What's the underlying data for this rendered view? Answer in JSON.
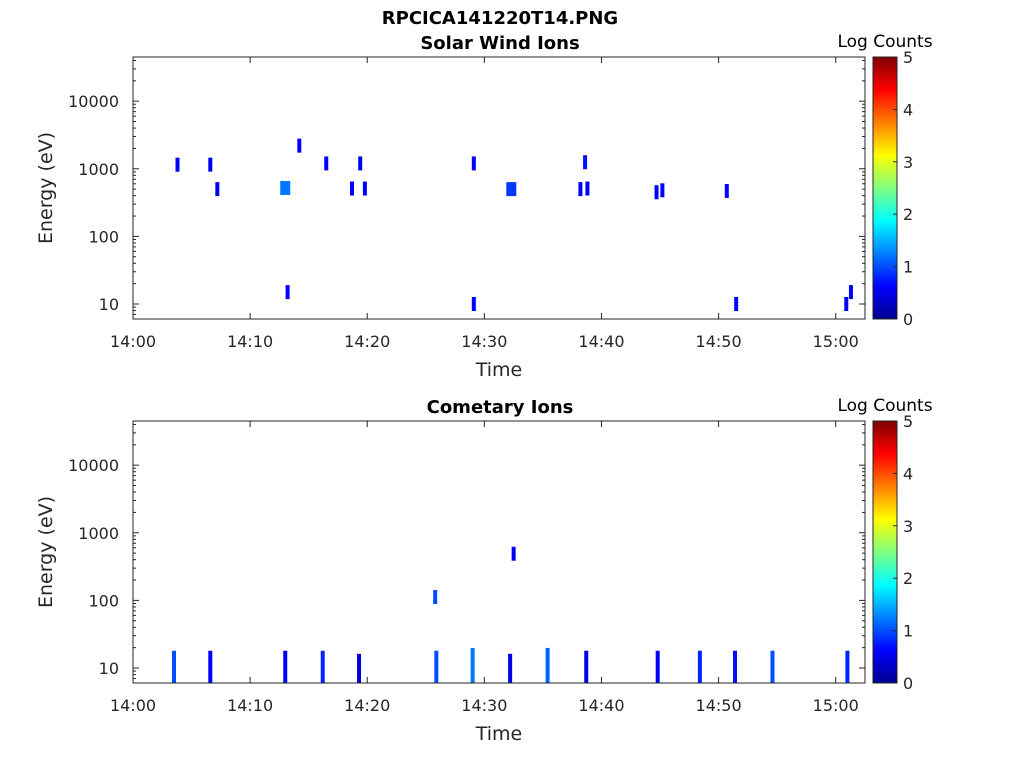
{
  "figure_title": "RPCICA141220T14.PNG",
  "colormap": [
    "#00008f",
    "#0000ff",
    "#00ffff",
    "#ffff00",
    "#ff0000",
    "#800000"
  ],
  "chart_data": [
    {
      "type": "heatmap",
      "title": "Solar Wind Ions",
      "xlabel": "Time",
      "ylabel": "Energy (eV)",
      "yscale": "log",
      "ylim": [
        6,
        45000
      ],
      "xlim_minutes": [
        0,
        62.5
      ],
      "xticks": [
        "14:00",
        "14:10",
        "14:20",
        "14:30",
        "14:40",
        "14:50",
        "15:00"
      ],
      "yticks": [
        "10",
        "100",
        "1000",
        "10000"
      ],
      "colorbar": {
        "label": "Log Counts",
        "range": [
          0,
          5
        ],
        "ticks": [
          "0",
          "1",
          "2",
          "3",
          "4",
          "5"
        ]
      },
      "events": [
        {
          "t": 3.8,
          "e": 1150,
          "level": 0.6
        },
        {
          "t": 6.6,
          "e": 1150,
          "level": 0.5
        },
        {
          "t": 7.2,
          "e": 500,
          "level": 0.5
        },
        {
          "t": 13.0,
          "e": 520,
          "level": 1.2
        },
        {
          "t": 13.2,
          "e": 15,
          "level": 0.6
        },
        {
          "t": 14.2,
          "e": 2200,
          "level": 0.6
        },
        {
          "t": 16.5,
          "e": 1200,
          "level": 0.6
        },
        {
          "t": 18.7,
          "e": 510,
          "level": 0.6
        },
        {
          "t": 19.4,
          "e": 1200,
          "level": 0.5
        },
        {
          "t": 19.8,
          "e": 510,
          "level": 0.6
        },
        {
          "t": 29.1,
          "e": 1200,
          "level": 0.6
        },
        {
          "t": 29.1,
          "e": 10,
          "level": 0.6
        },
        {
          "t": 32.3,
          "e": 500,
          "level": 0.9
        },
        {
          "t": 38.2,
          "e": 500,
          "level": 0.6
        },
        {
          "t": 38.6,
          "e": 1250,
          "level": 0.7
        },
        {
          "t": 38.8,
          "e": 510,
          "level": 0.6
        },
        {
          "t": 44.7,
          "e": 450,
          "level": 0.6
        },
        {
          "t": 45.2,
          "e": 480,
          "level": 0.6
        },
        {
          "t": 50.7,
          "e": 470,
          "level": 0.6
        },
        {
          "t": 51.5,
          "e": 10,
          "level": 0.6
        },
        {
          "t": 60.9,
          "e": 10,
          "level": 0.6
        },
        {
          "t": 61.3,
          "e": 15,
          "level": 0.6
        }
      ]
    },
    {
      "type": "heatmap",
      "title": "Cometary Ions",
      "xlabel": "Time",
      "ylabel": "Energy (eV)",
      "yscale": "log",
      "ylim": [
        6,
        45000
      ],
      "xlim_minutes": [
        0,
        62.5
      ],
      "xticks": [
        "14:00",
        "14:10",
        "14:20",
        "14:30",
        "14:40",
        "14:50",
        "15:00"
      ],
      "yticks": [
        "10",
        "100",
        "1000",
        "10000"
      ],
      "colorbar": {
        "label": "Log Counts",
        "range": [
          0,
          5
        ],
        "ticks": [
          "0",
          "1",
          "2",
          "3",
          "4",
          "5"
        ]
      },
      "events": [
        {
          "t": 3.5,
          "e": 10,
          "level": 1.0
        },
        {
          "t": 6.6,
          "e": 10,
          "level": 0.6
        },
        {
          "t": 13.0,
          "e": 10,
          "level": 0.6
        },
        {
          "t": 16.2,
          "e": 10,
          "level": 0.8
        },
        {
          "t": 19.3,
          "e": 9,
          "level": 0.4
        },
        {
          "t": 25.8,
          "e": 112,
          "level": 1.0
        },
        {
          "t": 25.9,
          "e": 10,
          "level": 1.0
        },
        {
          "t": 29.0,
          "e": 11,
          "level": 1.2
        },
        {
          "t": 32.2,
          "e": 9,
          "level": 0.5
        },
        {
          "t": 32.5,
          "e": 490,
          "level": 0.6
        },
        {
          "t": 35.4,
          "e": 11,
          "level": 1.1
        },
        {
          "t": 38.7,
          "e": 10,
          "level": 0.5
        },
        {
          "t": 44.8,
          "e": 10,
          "level": 0.6
        },
        {
          "t": 48.4,
          "e": 10,
          "level": 0.8
        },
        {
          "t": 51.4,
          "e": 10,
          "level": 0.7
        },
        {
          "t": 54.6,
          "e": 10,
          "level": 1.0
        },
        {
          "t": 61.0,
          "e": 10,
          "level": 0.8
        }
      ]
    }
  ]
}
